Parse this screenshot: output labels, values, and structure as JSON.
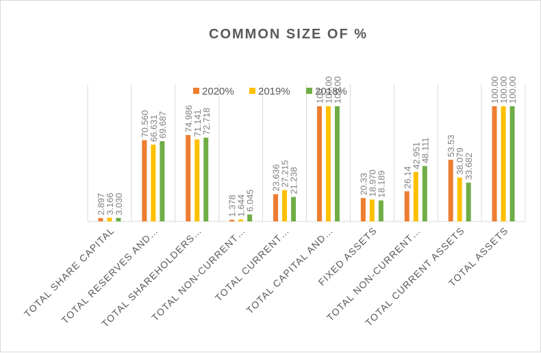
{
  "chart_data": {
    "type": "bar",
    "title": "COMMON SIZE OF %",
    "categories": [
      "TOTAL SHARE CAPITAL",
      "TOTAL RESERVES AND…",
      "TOTAL SHAREHOLDERS…",
      "TOTAL NON-CURRENT…",
      "TOTAL CURRENT…",
      "TOTAL CAPITAL AND…",
      "FIXED ASSETS",
      "TOTAL NON-CURRENT…",
      "TOTAL CURRENT ASSETS",
      "TOTAL ASSETS"
    ],
    "series": [
      {
        "name": "2020%",
        "color": "#ed7d31",
        "values": [
          2.897,
          70.56,
          74.986,
          1.378,
          23.636,
          100,
          20.33,
          26.14,
          53.53,
          100
        ],
        "labels": [
          "2.897",
          "70.560",
          "74.986",
          "1.378",
          "23.636",
          "100",
          "20.33",
          "26.14",
          "53.53",
          "100.00"
        ]
      },
      {
        "name": "2019%",
        "color": "#ffc000",
        "values": [
          3.166,
          66.631,
          71.141,
          1.644,
          27.215,
          100,
          18.97,
          42.951,
          38.079,
          100
        ],
        "labels": [
          "3.166",
          "66.631",
          "71.141",
          "1.644",
          "27.215",
          "100.00",
          "18.970",
          "42.951",
          "38.079",
          "100.00"
        ]
      },
      {
        "name": "2018%",
        "color": "#70ad47",
        "values": [
          3.03,
          69.687,
          72.718,
          6.045,
          21.238,
          100,
          18.189,
          48.111,
          33.682,
          100
        ],
        "labels": [
          "3.030",
          "69.687",
          "72.718",
          "6.045",
          "21.238",
          "100.00",
          "18.189",
          "48.111",
          "33.682",
          "100.00"
        ]
      }
    ],
    "xlabel": "",
    "ylabel": "",
    "ylim": [
      0,
      100
    ],
    "grid": "vertical category separators",
    "legend_position": "top"
  }
}
